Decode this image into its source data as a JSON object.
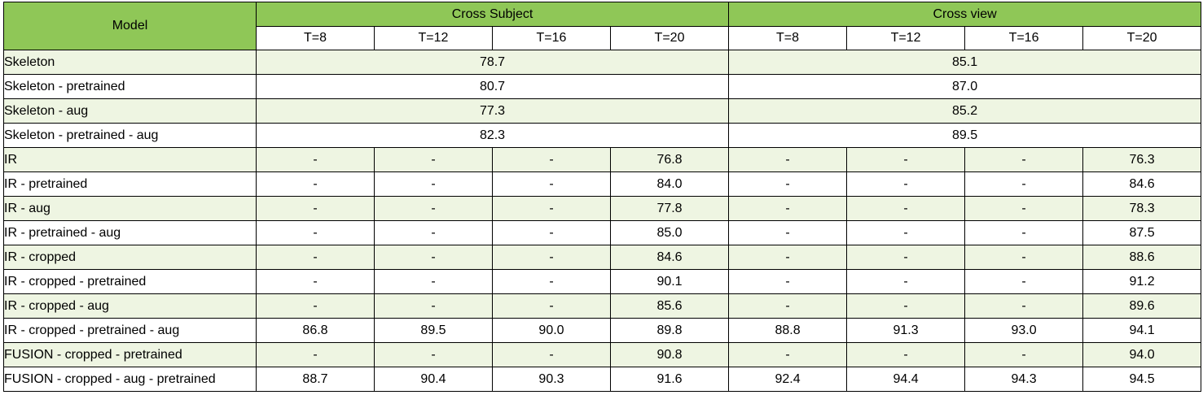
{
  "header": {
    "model_label": "Model",
    "group_labels": [
      "Cross Subject",
      "Cross view"
    ],
    "t_labels": [
      "T=8",
      "T=12",
      "T=16",
      "T=20",
      "T=8",
      "T=12",
      "T=16",
      "T=20"
    ]
  },
  "colors": {
    "header_green": "#8fc757",
    "row_shade": "#eef5e2",
    "border": "#000000"
  },
  "merged_rows": [
    {
      "model": "Skeleton",
      "cross_subject": "78.7",
      "cross_view": "85.1"
    },
    {
      "model": "Skeleton - pretrained",
      "cross_subject": "80.7",
      "cross_view": "87.0"
    },
    {
      "model": "Skeleton - aug",
      "cross_subject": "77.3",
      "cross_view": "85.2"
    },
    {
      "model": "Skeleton - pretrained - aug",
      "cross_subject": "82.3",
      "cross_view": "89.5"
    }
  ],
  "rows": [
    {
      "model": "IR",
      "values": [
        "-",
        "-",
        "-",
        "76.8",
        "-",
        "-",
        "-",
        "76.3"
      ]
    },
    {
      "model": "IR - pretrained",
      "values": [
        "-",
        "-",
        "-",
        "84.0",
        "-",
        "-",
        "-",
        "84.6"
      ]
    },
    {
      "model": "IR - aug",
      "values": [
        "-",
        "-",
        "-",
        "77.8",
        "-",
        "-",
        "-",
        "78.3"
      ]
    },
    {
      "model": "IR - pretrained - aug",
      "values": [
        "-",
        "-",
        "-",
        "85.0",
        "-",
        "-",
        "-",
        "87.5"
      ]
    },
    {
      "model": "IR - cropped",
      "values": [
        "-",
        "-",
        "-",
        "84.6",
        "-",
        "-",
        "-",
        "88.6"
      ]
    },
    {
      "model": "IR - cropped - pretrained",
      "values": [
        "-",
        "-",
        "-",
        "90.1",
        "-",
        "-",
        "-",
        "91.2"
      ]
    },
    {
      "model": "IR - cropped - aug",
      "values": [
        "-",
        "-",
        "-",
        "85.6",
        "-",
        "-",
        "-",
        "89.6"
      ]
    },
    {
      "model": "IR - cropped - pretrained - aug",
      "values": [
        "86.8",
        "89.5",
        "90.0",
        "89.8",
        "88.8",
        "91.3",
        "93.0",
        "94.1"
      ]
    },
    {
      "model": "FUSION - cropped - pretrained",
      "values": [
        "-",
        "-",
        "-",
        "90.8",
        "-",
        "-",
        "-",
        "94.0"
      ]
    },
    {
      "model": "FUSION - cropped - aug - pretrained",
      "values": [
        "88.7",
        "90.4",
        "90.3",
        "91.6",
        "92.4",
        "94.4",
        "94.3",
        "94.5"
      ]
    }
  ]
}
